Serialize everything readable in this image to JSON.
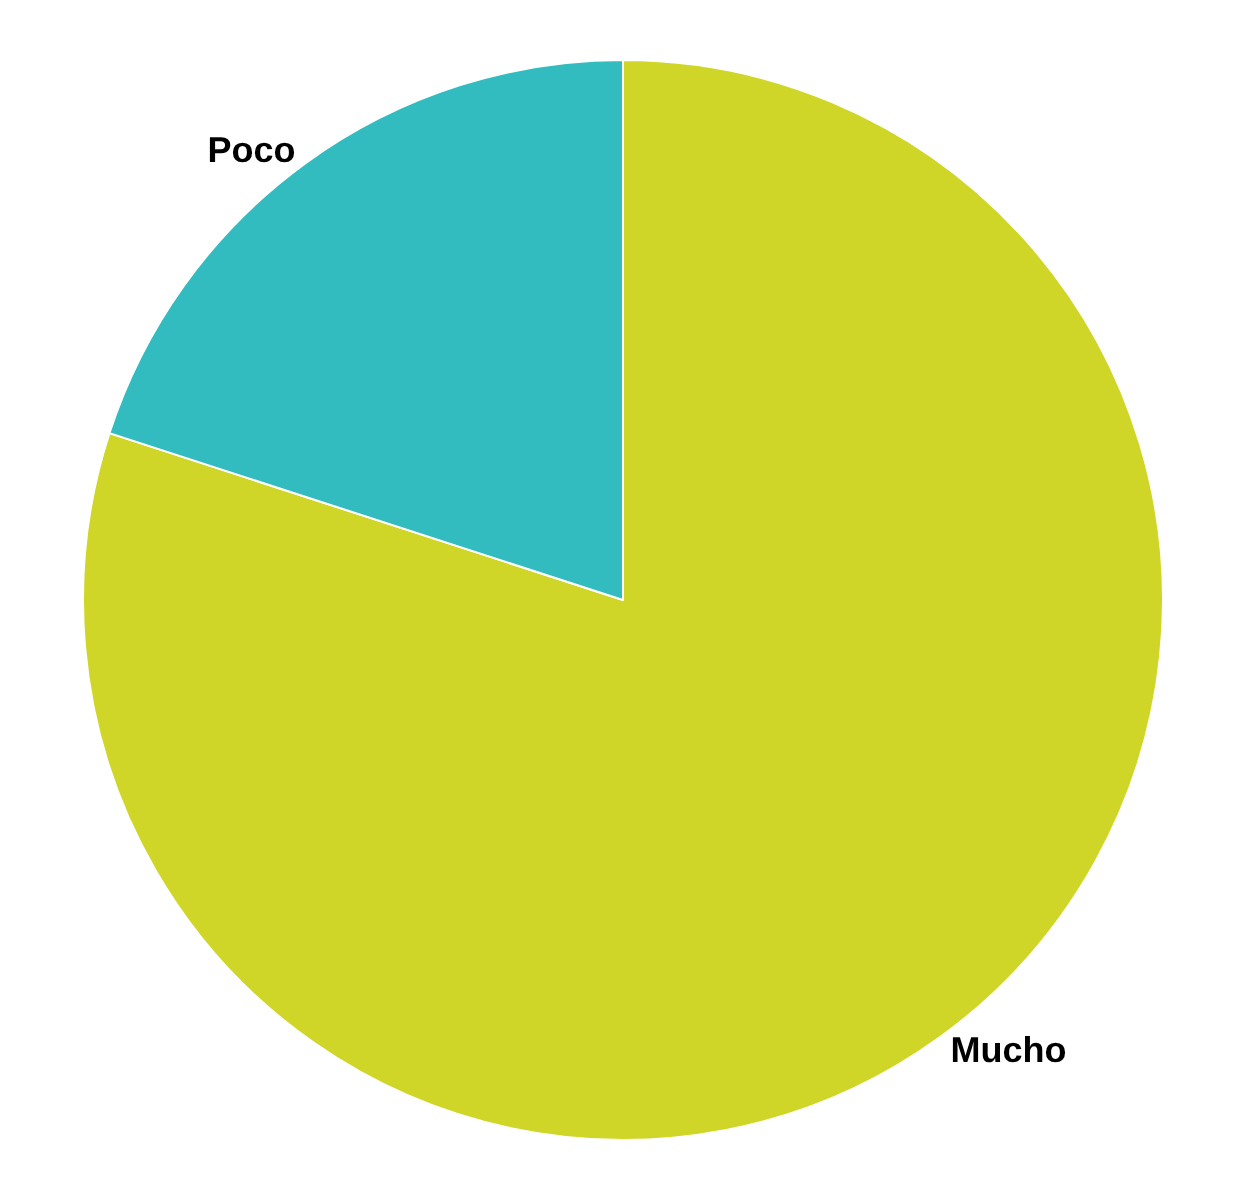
{
  "chart_data": {
    "type": "pie",
    "categories": [
      "Mucho",
      "Poco"
    ],
    "values": [
      80,
      20
    ],
    "colors": [
      "#cfd628",
      "#33bcbf"
    ]
  }
}
